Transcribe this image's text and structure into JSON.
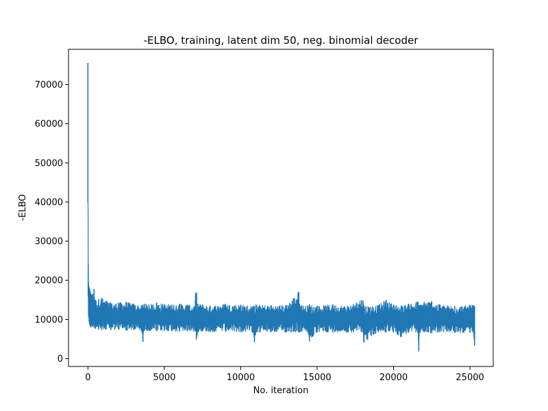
{
  "chart_data": {
    "type": "line",
    "title": "-ELBO, training, latent dim 50, neg. binomial decoder",
    "xlabel": "No. iteration",
    "ylabel": "-ELBO",
    "xlim": [
      -1270,
      26520
    ],
    "ylim": [
      -2000,
      79000
    ],
    "xticks": [
      0,
      5000,
      10000,
      15000,
      20000,
      25000
    ],
    "yticks": [
      0,
      10000,
      20000,
      30000,
      40000,
      50000,
      60000,
      70000
    ],
    "grid": false,
    "series": [
      {
        "color": "#1f77b4",
        "x": [
          0,
          20,
          40,
          60,
          80,
          100,
          130,
          160,
          200,
          250,
          300,
          400,
          500,
          700,
          900,
          1200,
          1500,
          2000,
          2500,
          3000,
          3500,
          3600,
          3700,
          4000,
          4500,
          5000,
          5500,
          6000,
          6500,
          7000,
          7050,
          7100,
          7200,
          7500,
          8000,
          9000,
          10000,
          10800,
          10900,
          11000,
          12000,
          13000,
          13800,
          13850,
          14000,
          14400,
          14500,
          15000,
          16000,
          17000,
          17900,
          18000,
          18050,
          19000,
          19500,
          20000,
          20500,
          21000,
          21600,
          21650,
          21700,
          22000,
          22500,
          23000,
          24000,
          25000,
          25200,
          25300
        ],
        "upper": [
          75500,
          24000,
          19000,
          18500,
          18200,
          18000,
          17500,
          17000,
          16500,
          16200,
          16500,
          17800,
          15000,
          15200,
          15500,
          14800,
          14200,
          14300,
          14500,
          14000,
          13500,
          13800,
          14000,
          13800,
          14300,
          13900,
          13800,
          14000,
          13800,
          13500,
          16800,
          16900,
          14000,
          13800,
          13500,
          14000,
          13800,
          13500,
          13400,
          13800,
          13600,
          13700,
          17100,
          14000,
          13600,
          13500,
          13900,
          13500,
          13800,
          13500,
          15000,
          14800,
          13700,
          13600,
          15000,
          13800,
          13500,
          14000,
          14600,
          13600,
          13700,
          14500,
          14700,
          13800,
          13500,
          13600,
          13700,
          13400
        ],
        "lower": [
          40000,
          16000,
          11000,
          10500,
          9500,
          9000,
          8500,
          8200,
          8000,
          8500,
          8200,
          8000,
          7600,
          7400,
          7300,
          7500,
          7300,
          7400,
          7200,
          7300,
          7000,
          4300,
          7200,
          7100,
          7000,
          7100,
          7000,
          6900,
          7000,
          6900,
          7000,
          4900,
          6800,
          7000,
          6800,
          6900,
          6800,
          6700,
          4200,
          6700,
          6800,
          6700,
          6800,
          6700,
          6900,
          6700,
          4400,
          6700,
          6800,
          6700,
          6800,
          6700,
          4100,
          6800,
          6700,
          6700,
          5500,
          6700,
          6600,
          1900,
          6600,
          6700,
          6500,
          6800,
          6600,
          6600,
          6700,
          3300
        ]
      }
    ]
  }
}
